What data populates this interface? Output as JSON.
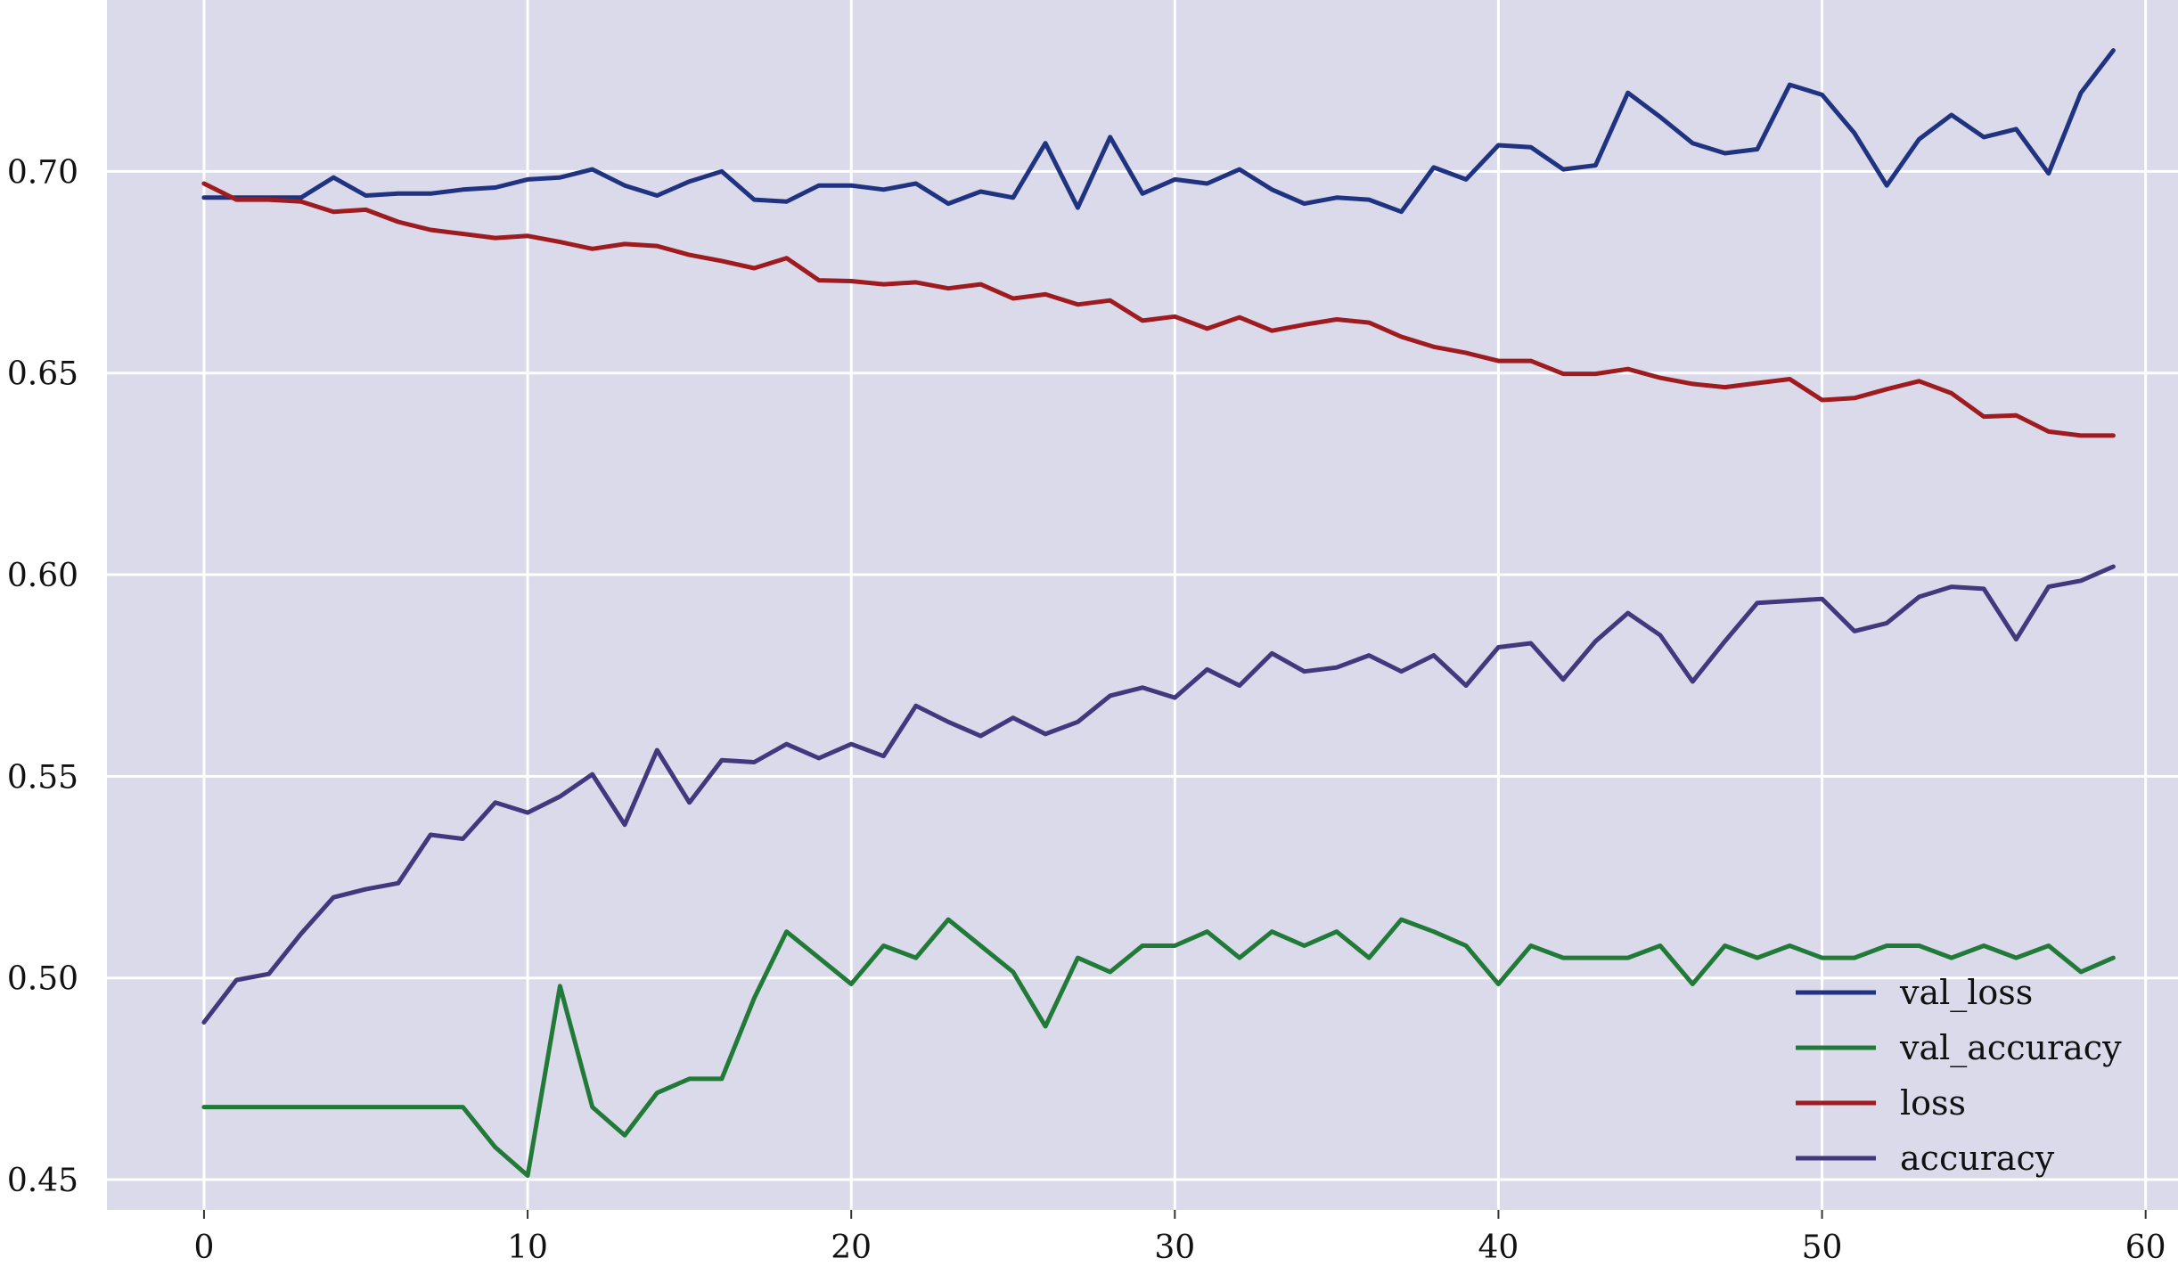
{
  "chart_data": {
    "type": "line",
    "title": "",
    "xlabel": "",
    "ylabel": "",
    "xlim": [
      -3.0,
      61.0
    ],
    "ylim": [
      0.4425,
      0.7425
    ],
    "x_ticks": [
      0,
      10,
      20,
      30,
      40,
      50,
      60
    ],
    "y_ticks": [
      0.45,
      0.5,
      0.55,
      0.6,
      0.65,
      0.7
    ],
    "y_tick_format": 2,
    "grid": true,
    "legend_position": "bottom-right",
    "colors": {
      "plot_background": "#dadaea",
      "grid": "#ffffff"
    },
    "series": [
      {
        "name": "val_loss",
        "color": "#1f3380",
        "values": [
          0.6935,
          0.6935,
          0.6935,
          0.6935,
          0.6985,
          0.694,
          0.6945,
          0.6945,
          0.6955,
          0.696,
          0.698,
          0.6985,
          0.7005,
          0.6965,
          0.694,
          0.6975,
          0.7,
          0.693,
          0.6925,
          0.6965,
          0.6965,
          0.6955,
          0.697,
          0.692,
          0.695,
          0.6935,
          0.707,
          0.691,
          0.7085,
          0.6945,
          0.698,
          0.697,
          0.7005,
          0.6955,
          0.692,
          0.6935,
          0.693,
          0.69,
          0.701,
          0.698,
          0.7065,
          0.706,
          0.7005,
          0.7015,
          0.7195,
          0.7135,
          0.707,
          0.7045,
          0.7055,
          0.7215,
          0.719,
          0.7095,
          0.6965,
          0.708,
          0.714,
          0.7085,
          0.7105,
          0.6995,
          0.7195,
          0.73
        ]
      },
      {
        "name": "val_accuracy",
        "color": "#217a37",
        "values": [
          0.468,
          0.468,
          0.468,
          0.468,
          0.468,
          0.468,
          0.468,
          0.468,
          0.468,
          0.458,
          0.451,
          0.498,
          0.468,
          0.461,
          0.4715,
          0.475,
          0.475,
          0.495,
          0.5115,
          0.505,
          0.4985,
          0.508,
          0.505,
          0.5145,
          0.508,
          0.5015,
          0.488,
          0.505,
          0.5015,
          0.508,
          0.508,
          0.5115,
          0.505,
          0.5115,
          0.508,
          0.5115,
          0.505,
          0.5145,
          0.5115,
          0.508,
          0.4985,
          0.508,
          0.505,
          0.505,
          0.505,
          0.508,
          0.4985,
          0.508,
          0.505,
          0.508,
          0.505,
          0.505,
          0.508,
          0.508,
          0.505,
          0.508,
          0.505,
          0.508,
          0.5015,
          0.505
        ]
      },
      {
        "name": "loss",
        "color": "#9e1b1f",
        "values": [
          0.697,
          0.693,
          0.693,
          0.6925,
          0.69,
          0.6905,
          0.6875,
          0.6855,
          0.6845,
          0.6835,
          0.684,
          0.6825,
          0.6808,
          0.682,
          0.6815,
          0.6793,
          0.6778,
          0.676,
          0.6785,
          0.673,
          0.6728,
          0.672,
          0.6725,
          0.671,
          0.672,
          0.6685,
          0.6695,
          0.667,
          0.668,
          0.663,
          0.664,
          0.661,
          0.6638,
          0.6605,
          0.662,
          0.6633,
          0.6625,
          0.659,
          0.6565,
          0.655,
          0.653,
          0.653,
          0.6498,
          0.6498,
          0.651,
          0.6488,
          0.6473,
          0.6465,
          0.6475,
          0.6485,
          0.6433,
          0.6438,
          0.646,
          0.648,
          0.645,
          0.6392,
          0.6395,
          0.6355,
          0.6345,
          0.6345
        ]
      },
      {
        "name": "accuracy",
        "color": "#41387d",
        "values": [
          0.489,
          0.4995,
          0.501,
          0.511,
          0.52,
          0.522,
          0.5235,
          0.5355,
          0.5345,
          0.5435,
          0.541,
          0.545,
          0.5505,
          0.538,
          0.5565,
          0.5435,
          0.554,
          0.5535,
          0.558,
          0.5545,
          0.558,
          0.555,
          0.5675,
          0.5635,
          0.56,
          0.5645,
          0.5605,
          0.5635,
          0.57,
          0.572,
          0.5695,
          0.5765,
          0.5725,
          0.5805,
          0.576,
          0.577,
          0.58,
          0.576,
          0.58,
          0.5725,
          0.582,
          0.583,
          0.574,
          0.5835,
          0.5905,
          0.585,
          0.5735,
          0.5835,
          0.593,
          0.5935,
          0.594,
          0.586,
          0.588,
          0.5945,
          0.597,
          0.5965,
          0.584,
          0.597,
          0.5985,
          0.602
        ]
      }
    ]
  }
}
